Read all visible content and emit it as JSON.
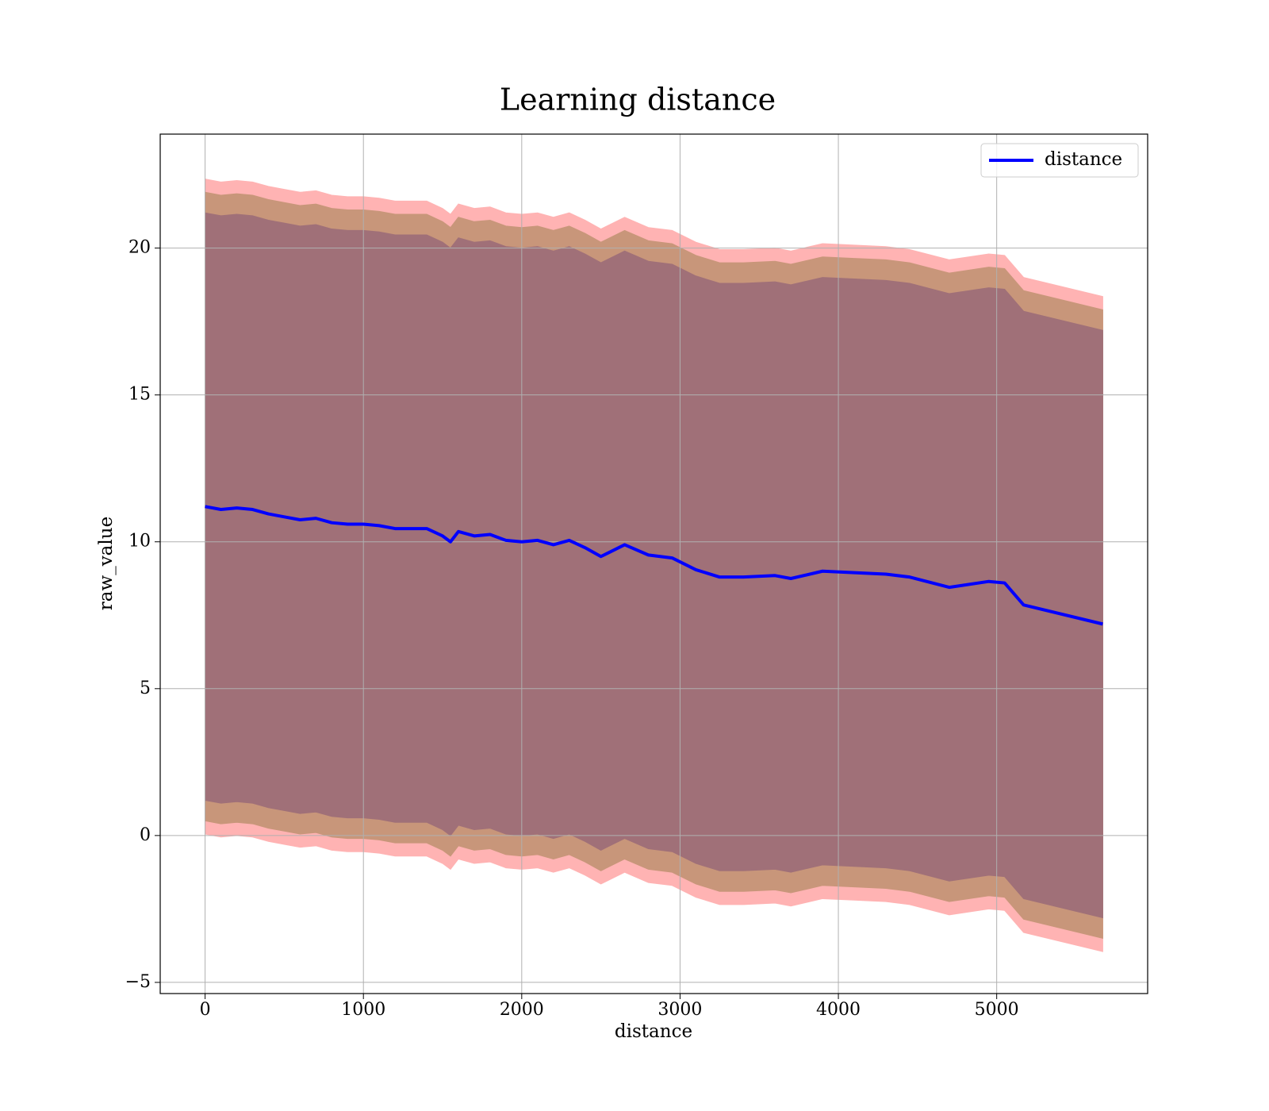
{
  "chart_data": {
    "type": "line",
    "title": "Learning distance",
    "xlabel": "distance",
    "ylabel": "raw_value",
    "xlim": [
      -283.5,
      5953.5
    ],
    "ylim": [
      -5.38,
      23.88
    ],
    "xticks": [
      0,
      1000,
      2000,
      3000,
      4000,
      5000
    ],
    "yticks": [
      {
        "value": -5,
        "label": "−5"
      },
      0,
      5,
      10,
      15,
      20
    ],
    "grid": true,
    "legend": "upper right",
    "x": [
      0,
      100,
      200,
      300,
      400,
      500,
      600,
      700,
      800,
      900,
      1000,
      1100,
      1200,
      1300,
      1400,
      1500,
      1550,
      1600,
      1700,
      1800,
      1900,
      2000,
      2100,
      2200,
      2300,
      2400,
      2500,
      2650,
      2800,
      2950,
      3100,
      3250,
      3400,
      3600,
      3700,
      3900,
      4100,
      4300,
      4450,
      4700,
      4950,
      5050,
      5170,
      5670
    ],
    "series": [
      {
        "name": "distance",
        "color": "#0000ff",
        "values": [
          11.2,
          11.1,
          11.15,
          11.1,
          10.95,
          10.85,
          10.75,
          10.8,
          10.65,
          10.6,
          10.6,
          10.55,
          10.45,
          10.45,
          10.45,
          10.2,
          10.0,
          10.35,
          10.2,
          10.25,
          10.05,
          10.0,
          10.05,
          9.9,
          10.05,
          9.8,
          9.5,
          9.9,
          9.55,
          9.45,
          9.05,
          8.8,
          8.8,
          8.85,
          8.75,
          9.0,
          8.95,
          8.9,
          8.8,
          8.45,
          8.65,
          8.6,
          7.85,
          7.2
        ]
      }
    ],
    "bands": [
      {
        "color": "#ffb3b3",
        "upper": [
          22.35,
          22.25,
          22.3,
          22.25,
          22.1,
          22.0,
          21.9,
          21.95,
          21.8,
          21.75,
          21.75,
          21.7,
          21.6,
          21.6,
          21.6,
          21.35,
          21.15,
          21.5,
          21.35,
          21.4,
          21.2,
          21.15,
          21.2,
          21.05,
          21.2,
          20.95,
          20.65,
          21.05,
          20.7,
          20.6,
          20.2,
          19.95,
          19.95,
          20.0,
          19.9,
          20.15,
          20.1,
          20.05,
          19.95,
          19.6,
          19.8,
          19.75,
          19.0,
          18.35
        ],
        "lower": [
          0.05,
          -0.05,
          0.0,
          -0.05,
          -0.2,
          -0.3,
          -0.4,
          -0.35,
          -0.5,
          -0.55,
          -0.55,
          -0.6,
          -0.7,
          -0.7,
          -0.7,
          -0.95,
          -1.15,
          -0.8,
          -0.95,
          -0.9,
          -1.1,
          -1.15,
          -1.1,
          -1.25,
          -1.1,
          -1.35,
          -1.65,
          -1.25,
          -1.6,
          -1.7,
          -2.1,
          -2.35,
          -2.35,
          -2.3,
          -2.4,
          -2.15,
          -2.2,
          -2.25,
          -2.35,
          -2.7,
          -2.5,
          -2.55,
          -3.3,
          -3.95
        ]
      },
      {
        "color": "#c8967a",
        "upper": [
          21.9,
          21.8,
          21.85,
          21.8,
          21.65,
          21.55,
          21.45,
          21.5,
          21.35,
          21.3,
          21.3,
          21.25,
          21.15,
          21.15,
          21.15,
          20.9,
          20.7,
          21.05,
          20.9,
          20.95,
          20.75,
          20.7,
          20.75,
          20.6,
          20.75,
          20.5,
          20.2,
          20.6,
          20.25,
          20.15,
          19.75,
          19.5,
          19.5,
          19.55,
          19.45,
          19.7,
          19.65,
          19.6,
          19.5,
          19.15,
          19.35,
          19.3,
          18.55,
          17.9
        ],
        "lower": [
          0.5,
          0.4,
          0.45,
          0.4,
          0.25,
          0.15,
          0.05,
          0.1,
          -0.05,
          -0.1,
          -0.1,
          -0.15,
          -0.25,
          -0.25,
          -0.25,
          -0.5,
          -0.7,
          -0.35,
          -0.5,
          -0.45,
          -0.65,
          -0.7,
          -0.65,
          -0.8,
          -0.65,
          -0.9,
          -1.2,
          -0.8,
          -1.15,
          -1.25,
          -1.65,
          -1.9,
          -1.9,
          -1.85,
          -1.95,
          -1.7,
          -1.75,
          -1.8,
          -1.9,
          -2.25,
          -2.05,
          -2.1,
          -2.85,
          -3.5
        ]
      },
      {
        "color": "#a07078",
        "upper": [
          21.2,
          21.1,
          21.15,
          21.1,
          20.95,
          20.85,
          20.75,
          20.8,
          20.65,
          20.6,
          20.6,
          20.55,
          20.45,
          20.45,
          20.45,
          20.2,
          20.0,
          20.35,
          20.2,
          20.25,
          20.05,
          20.0,
          20.05,
          19.9,
          20.05,
          19.8,
          19.5,
          19.9,
          19.55,
          19.45,
          19.05,
          18.8,
          18.8,
          18.85,
          18.75,
          19.0,
          18.95,
          18.9,
          18.8,
          18.45,
          18.65,
          18.6,
          17.85,
          17.2
        ],
        "lower": [
          1.2,
          1.1,
          1.15,
          1.1,
          0.95,
          0.85,
          0.75,
          0.8,
          0.65,
          0.6,
          0.6,
          0.55,
          0.45,
          0.45,
          0.45,
          0.2,
          0.0,
          0.35,
          0.2,
          0.25,
          0.05,
          0.0,
          0.05,
          -0.1,
          0.05,
          -0.2,
          -0.5,
          -0.1,
          -0.45,
          -0.55,
          -0.95,
          -1.2,
          -1.2,
          -1.15,
          -1.25,
          -1.0,
          -1.05,
          -1.1,
          -1.2,
          -1.55,
          -1.35,
          -1.4,
          -2.15,
          -2.8
        ]
      }
    ]
  }
}
